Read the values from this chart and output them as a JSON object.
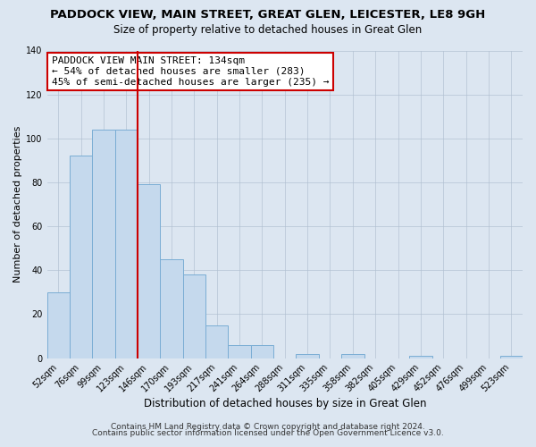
{
  "title": "PADDOCK VIEW, MAIN STREET, GREAT GLEN, LEICESTER, LE8 9GH",
  "subtitle": "Size of property relative to detached houses in Great Glen",
  "xlabel": "Distribution of detached houses by size in Great Glen",
  "ylabel": "Number of detached properties",
  "bar_labels": [
    "52sqm",
    "76sqm",
    "99sqm",
    "123sqm",
    "146sqm",
    "170sqm",
    "193sqm",
    "217sqm",
    "241sqm",
    "264sqm",
    "288sqm",
    "311sqm",
    "335sqm",
    "358sqm",
    "382sqm",
    "405sqm",
    "429sqm",
    "452sqm",
    "476sqm",
    "499sqm",
    "523sqm"
  ],
  "bar_values": [
    30,
    92,
    104,
    104,
    79,
    45,
    38,
    15,
    6,
    6,
    0,
    2,
    0,
    2,
    0,
    0,
    1,
    0,
    0,
    0,
    1
  ],
  "bar_color": "#c5d9ed",
  "bar_edge_color": "#7aadd4",
  "background_color": "#dce6f1",
  "plot_background": "#dce6f1",
  "ylim": [
    0,
    140
  ],
  "yticks": [
    0,
    20,
    40,
    60,
    80,
    100,
    120,
    140
  ],
  "vline_x": 3.5,
  "vline_color": "#cc0000",
  "annotation_title": "PADDOCK VIEW MAIN STREET: 134sqm",
  "annotation_line1": "← 54% of detached houses are smaller (283)",
  "annotation_line2": "45% of semi-detached houses are larger (235) →",
  "annotation_box_color": "#ffffff",
  "annotation_box_edge": "#cc0000",
  "footer_line1": "Contains HM Land Registry data © Crown copyright and database right 2024.",
  "footer_line2": "Contains public sector information licensed under the Open Government Licence v3.0.",
  "title_fontsize": 9.5,
  "subtitle_fontsize": 8.5,
  "xlabel_fontsize": 8.5,
  "ylabel_fontsize": 8,
  "tick_fontsize": 7,
  "annotation_fontsize": 8,
  "footer_fontsize": 6.5
}
